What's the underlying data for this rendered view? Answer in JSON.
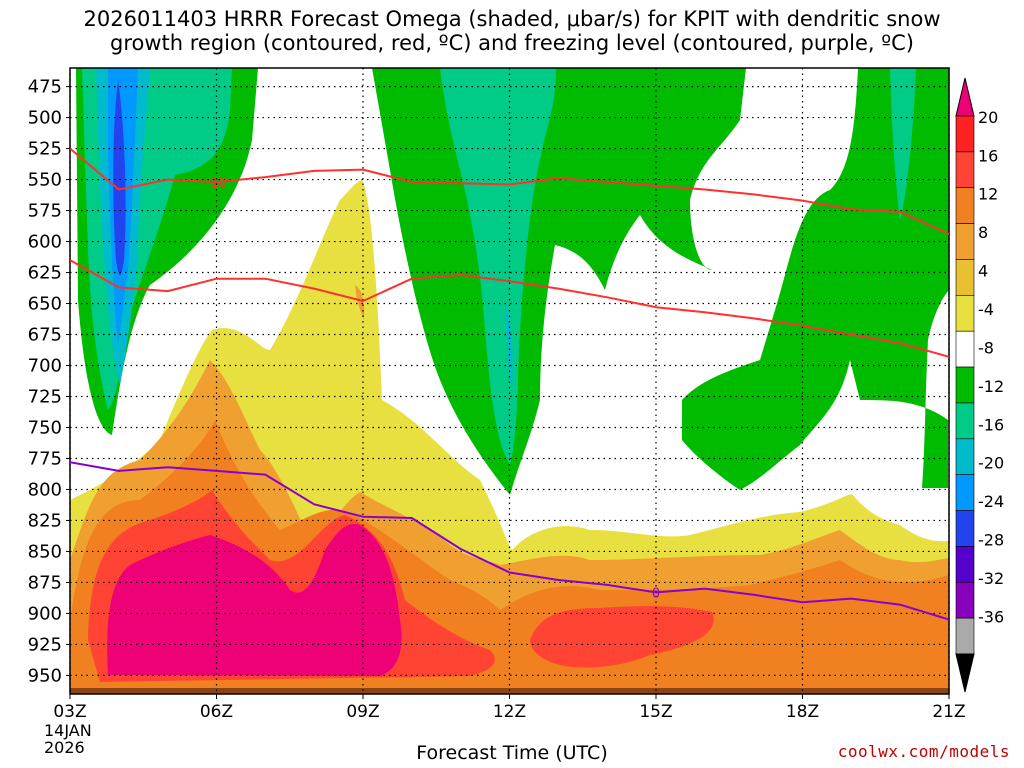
{
  "header": {
    "title_line1": "2026011403 HRRR Forecast Omega (shaded, μbar/s) for KPIT with dendritic snow",
    "title_line2": "growth region (contoured, red, ºC) and freezing level (contoured, purple, ºC)"
  },
  "footer": {
    "credit": "coolwx.com/models",
    "date_line1": "14JAN",
    "date_line2": "2026"
  },
  "chart_data": {
    "type": "contour",
    "title": "2026011403 HRRR Forecast Omega (shaded, μbar/s) for KPIT with dendritic snow growth region (contoured, red, ºC) and freezing level (contoured, purple, ºC)",
    "xlabel": "Forecast Time (UTC)",
    "ylabel": "",
    "x_ticks": [
      "03Z",
      "06Z",
      "09Z",
      "12Z",
      "15Z",
      "18Z",
      "21Z"
    ],
    "x_hours": [
      3,
      6,
      9,
      12,
      15,
      18,
      21
    ],
    "xlim": [
      3,
      21
    ],
    "y_ticks": [
      475,
      500,
      525,
      550,
      575,
      600,
      625,
      650,
      675,
      700,
      725,
      750,
      775,
      800,
      825,
      850,
      875,
      900,
      925,
      950
    ],
    "ylim": [
      460,
      965
    ],
    "y_unit": "hPa",
    "colorbar": {
      "labels": [
        "20",
        "16",
        "12",
        "8",
        "4",
        "-4",
        "-8",
        "-12",
        "-16",
        "-20",
        "-24",
        "-28",
        "-32",
        "-36"
      ],
      "colors": [
        "#ee0077",
        "#ff2222",
        "#ff4433",
        "#f08020",
        "#f0a030",
        "#e8c030",
        "#e8e040",
        "#ffffff",
        "#00bb00",
        "#00cc88",
        "#00bbcc",
        "#0099ff",
        "#2244ee",
        "#5500cc",
        "#8800bb",
        "#aaaaaa",
        "#000000"
      ]
    },
    "series": [
      {
        "name": "dendritic -18 ºC",
        "color": "#ff3030",
        "label": "-18",
        "hours": [
          3,
          4,
          5,
          6,
          7,
          8,
          9,
          10,
          11,
          12,
          13,
          14,
          15,
          16,
          17,
          18,
          19,
          20,
          21
        ],
        "pressure": [
          525,
          558,
          550,
          552,
          548,
          543,
          542,
          552,
          553,
          554,
          549,
          552,
          555,
          558,
          562,
          567,
          574,
          576,
          594
        ]
      },
      {
        "name": "dendritic -12 ºC",
        "color": "#ff3030",
        "label": "-12",
        "hours": [
          3,
          4,
          5,
          6,
          7,
          8,
          9,
          10,
          11,
          12,
          13,
          14,
          15,
          16,
          17,
          18,
          19,
          20,
          21
        ],
        "pressure": [
          615,
          637,
          640,
          630,
          630,
          638,
          648,
          630,
          627,
          632,
          638,
          645,
          653,
          657,
          662,
          668,
          675,
          682,
          693
        ]
      },
      {
        "name": "freezing level 0 ºC",
        "color": "#8a00cc",
        "label": "0",
        "hours": [
          3,
          4,
          5,
          6,
          7,
          8,
          9,
          10,
          11,
          12,
          13,
          14,
          15,
          16,
          17,
          18,
          19,
          20,
          21
        ],
        "pressure": [
          778,
          785,
          782,
          785,
          788,
          812,
          822,
          823,
          848,
          867,
          873,
          877,
          883,
          880,
          885,
          891,
          888,
          893,
          905
        ]
      }
    ]
  }
}
